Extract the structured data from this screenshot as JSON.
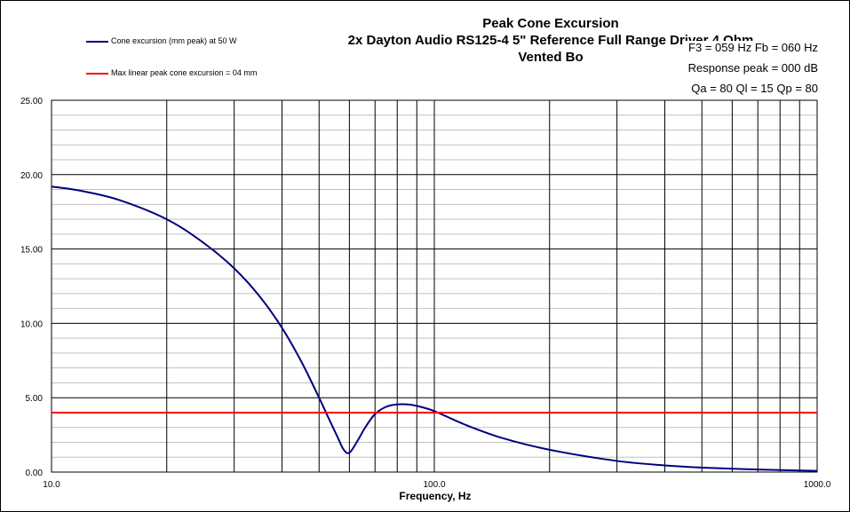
{
  "chart_data": {
    "type": "line",
    "title": [
      "Peak Cone Excursion",
      "2x Dayton Audio RS125-4 5\" Reference Full Range Driver 4 Ohm",
      "Vented Bo"
    ],
    "xlabel": "Frequency, Hz",
    "ylabel": "",
    "xscale": "log",
    "xlim": [
      10,
      1000
    ],
    "ylim": [
      0,
      25
    ],
    "x_tick_labels": [
      "10.0",
      "100.0",
      "1000.0"
    ],
    "y_tick_labels": [
      "0.00",
      "5.00",
      "10.00",
      "15.00",
      "20.00",
      "25.00"
    ],
    "grid": true,
    "legend_position": "top-left",
    "series": [
      {
        "name": "Cone excursion (mm peak) at 50 W",
        "color": "#000080",
        "x": [
          10,
          12,
          15,
          20,
          25,
          30,
          35,
          40,
          45,
          50,
          53,
          56,
          58,
          60,
          63,
          66,
          70,
          75,
          80,
          85,
          90,
          100,
          120,
          150,
          200,
          300,
          400,
          500,
          700,
          1000
        ],
        "y": [
          19.2,
          18.9,
          18.3,
          17.0,
          15.4,
          13.7,
          11.8,
          9.7,
          7.4,
          5.0,
          3.6,
          2.3,
          1.5,
          1.3,
          2.1,
          3.0,
          3.9,
          4.4,
          4.55,
          4.55,
          4.45,
          4.1,
          3.2,
          2.3,
          1.5,
          0.75,
          0.45,
          0.3,
          0.17,
          0.08
        ]
      },
      {
        "name": "Max linear peak cone excursion = 04 mm",
        "color": "#ff0000",
        "x": [
          10,
          1000
        ],
        "y": [
          4,
          4
        ]
      }
    ]
  },
  "stats": {
    "f3_fb": "F3 = 059 Hz  Fb = 060 Hz",
    "response_peak": "Response  peak = 000 dB",
    "q_values": "Qa = 80  Ql = 15  Qp = 80"
  }
}
